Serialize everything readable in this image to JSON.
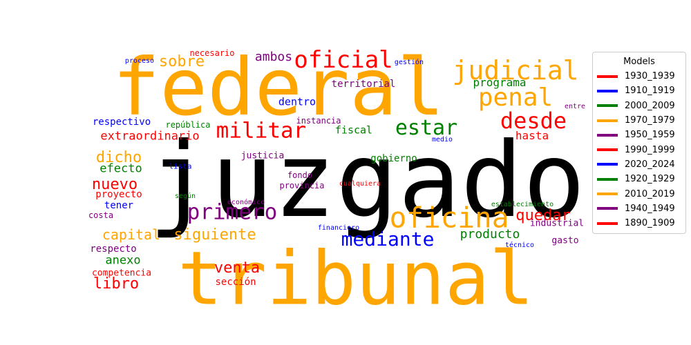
{
  "chart_data": {
    "type": "wordcloud",
    "legend": {
      "title": "Models",
      "placement": "right",
      "entries": [
        {
          "name": "1930_1939",
          "color": "#ff0000"
        },
        {
          "name": "1910_1919",
          "color": "#0000ff"
        },
        {
          "name": "2000_2009",
          "color": "#008000"
        },
        {
          "name": "1970_1979",
          "color": "#ffa500"
        },
        {
          "name": "1950_1959",
          "color": "#800080"
        },
        {
          "name": "1990_1999",
          "color": "#ff0000"
        },
        {
          "name": "2020_2024",
          "color": "#0000ff"
        },
        {
          "name": "1920_1929",
          "color": "#008000"
        },
        {
          "name": "2010_2019",
          "color": "#ffa500"
        },
        {
          "name": "1940_1949",
          "color": "#800080"
        },
        {
          "name": "1890_1909",
          "color": "#ff0000"
        }
      ]
    },
    "words": [
      {
        "text": "juzgado",
        "color": "#000000"
      },
      {
        "text": "federal",
        "color": "#ffa500"
      },
      {
        "text": "tribunal",
        "color": "#ffa500"
      },
      {
        "text": "judicial",
        "color": "#ffa500"
      },
      {
        "text": "oficial",
        "color": "#ff0000"
      },
      {
        "text": "penal",
        "color": "#ffa500"
      },
      {
        "text": "oficina",
        "color": "#ffa500"
      },
      {
        "text": "desde",
        "color": "#ff0000"
      },
      {
        "text": "militar",
        "color": "#ff0000"
      },
      {
        "text": "estar",
        "color": "#008000"
      },
      {
        "text": "primero",
        "color": "#800080"
      },
      {
        "text": "mediante",
        "color": "#0000ff"
      },
      {
        "text": "siguiente",
        "color": "#ffa500"
      },
      {
        "text": "capital",
        "color": "#ffa500"
      },
      {
        "text": "venta",
        "color": "#ff0000"
      },
      {
        "text": "sobre",
        "color": "#ffa500"
      },
      {
        "text": "dicho",
        "color": "#ffa500"
      },
      {
        "text": "nuevo",
        "color": "#ff0000"
      },
      {
        "text": "quedar",
        "color": "#ff0000"
      },
      {
        "text": "libro",
        "color": "#ff0000"
      },
      {
        "text": "producto",
        "color": "#008000"
      },
      {
        "text": "extraordinario",
        "color": "#ff0000"
      },
      {
        "text": "ambos",
        "color": "#800080"
      },
      {
        "text": "programa",
        "color": "#008000"
      },
      {
        "text": "hasta",
        "color": "#ff0000"
      },
      {
        "text": "fiscal",
        "color": "#008000"
      },
      {
        "text": "efecto",
        "color": "#008000"
      },
      {
        "text": "anexo",
        "color": "#008000"
      },
      {
        "text": "dentro",
        "color": "#0000ff"
      },
      {
        "text": "territorial",
        "color": "#800080"
      },
      {
        "text": "respectivo",
        "color": "#0000ff"
      },
      {
        "text": "proyecto",
        "color": "#ff0000"
      },
      {
        "text": "tener",
        "color": "#0000ff"
      },
      {
        "text": "respecto",
        "color": "#800080"
      },
      {
        "text": "competencia",
        "color": "#ff0000"
      },
      {
        "text": "sección",
        "color": "#ff0000"
      },
      {
        "text": "gobierno",
        "color": "#008000"
      },
      {
        "text": "justicia",
        "color": "#800080"
      },
      {
        "text": "industrial",
        "color": "#800080"
      },
      {
        "text": "costa",
        "color": "#800080"
      },
      {
        "text": "necesario",
        "color": "#ff0000"
      },
      {
        "text": "república",
        "color": "#008000"
      },
      {
        "text": "instancia",
        "color": "#800080"
      },
      {
        "text": "fondo",
        "color": "#800080"
      },
      {
        "text": "provincia",
        "color": "#800080"
      },
      {
        "text": "gasto",
        "color": "#800080"
      },
      {
        "text": "lista",
        "color": "#0000ff"
      },
      {
        "text": "según",
        "color": "#008000"
      },
      {
        "text": "proceso",
        "color": "#0000ff"
      },
      {
        "text": "gestión",
        "color": "#0000ff"
      },
      {
        "text": "entre",
        "color": "#800080"
      },
      {
        "text": "medio",
        "color": "#0000ff"
      },
      {
        "text": "cualquiera",
        "color": "#ff0000"
      },
      {
        "text": "económico",
        "color": "#800080"
      },
      {
        "text": "establecimiento",
        "color": "#008000"
      },
      {
        "text": "financiero",
        "color": "#0000ff"
      },
      {
        "text": "técnico",
        "color": "#0000ff"
      }
    ]
  }
}
